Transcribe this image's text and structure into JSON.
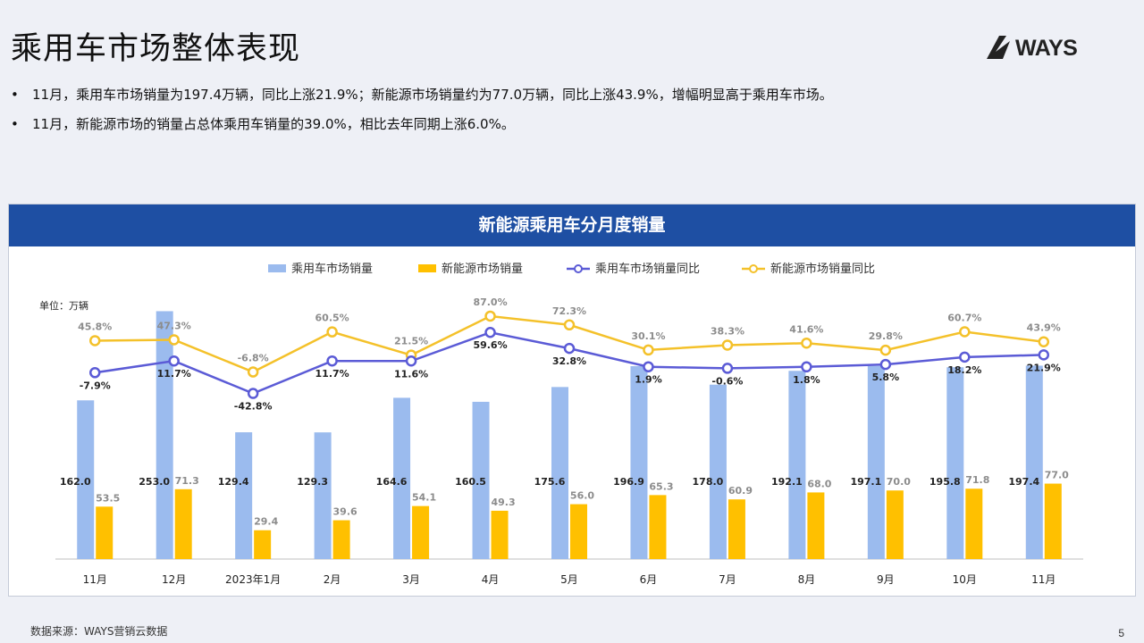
{
  "page": {
    "title": "乘用车市场整体表现",
    "logo_text": "WAYS",
    "bullets": [
      "11月，乘用车市场销量为197.4万辆，同比上涨21.9%；新能源市场销量约为77.0万辆，同比上涨43.9%，增幅明显高于乘用车市场。",
      "11月，新能源市场的销量占总体乘用车销量的39.0%，相比去年同期上涨6.0%。"
    ],
    "source": "数据来源：WAYS营销云数据",
    "page_number": "5"
  },
  "chart_data": {
    "type": "bar",
    "title": "新能源乘用车分月度销量",
    "unit": "单位：万辆",
    "categories": [
      "11月",
      "12月",
      "2023年1月",
      "2月",
      "3月",
      "4月",
      "5月",
      "6月",
      "7月",
      "8月",
      "9月",
      "10月",
      "11月"
    ],
    "series": [
      {
        "name": "乘用车市场销量",
        "kind": "bar",
        "color": "#9bbbee",
        "values": [
          162.0,
          253.0,
          129.4,
          129.3,
          164.6,
          160.5,
          175.6,
          196.9,
          178.0,
          192.1,
          197.1,
          195.8,
          197.4
        ],
        "labels": [
          "162.0",
          "253.0",
          "129.4",
          "129.3",
          "164.6",
          "160.5",
          "175.6",
          "196.9",
          "178.0",
          "192.1",
          "197.1",
          "195.8",
          "197.4"
        ]
      },
      {
        "name": "新能源市场销量",
        "kind": "bar",
        "color": "#ffc000",
        "values": [
          53.5,
          71.3,
          29.4,
          39.6,
          54.1,
          49.3,
          56.0,
          65.3,
          60.9,
          68.0,
          70.0,
          71.8,
          77.0
        ],
        "labels": [
          "53.5",
          "71.3",
          "29.4",
          "39.6",
          "54.1",
          "49.3",
          "56.0",
          "65.3",
          "60.9",
          "68.0",
          "70.0",
          "71.8",
          "77.0"
        ]
      },
      {
        "name": "乘用车市场销量同比",
        "kind": "line",
        "color": "#5b5bd6",
        "values": [
          -7.9,
          11.7,
          -42.8,
          11.7,
          11.6,
          59.6,
          32.8,
          1.9,
          -0.6,
          1.8,
          5.8,
          18.2,
          21.9
        ],
        "labels": [
          "-7.9%",
          "11.7%",
          "-42.8%",
          "11.7%",
          "11.6%",
          "59.6%",
          "32.8%",
          "1.9%",
          "-0.6%",
          "1.8%",
          "5.8%",
          "18.2%",
          "21.9%"
        ]
      },
      {
        "name": "新能源市场销量同比",
        "kind": "line",
        "color": "#f4c12a",
        "values": [
          45.8,
          47.3,
          -6.8,
          60.5,
          21.5,
          87.0,
          72.3,
          30.1,
          38.3,
          41.6,
          29.8,
          60.7,
          43.9
        ],
        "labels": [
          "45.8%",
          "47.3%",
          "-6.8%",
          "60.5%",
          "21.5%",
          "87.0%",
          "72.3%",
          "30.1%",
          "38.3%",
          "41.6%",
          "29.8%",
          "60.7%",
          "43.9%"
        ]
      }
    ],
    "bar_ylim": [
      0,
      270
    ],
    "legend_position": "top",
    "grid": false
  }
}
